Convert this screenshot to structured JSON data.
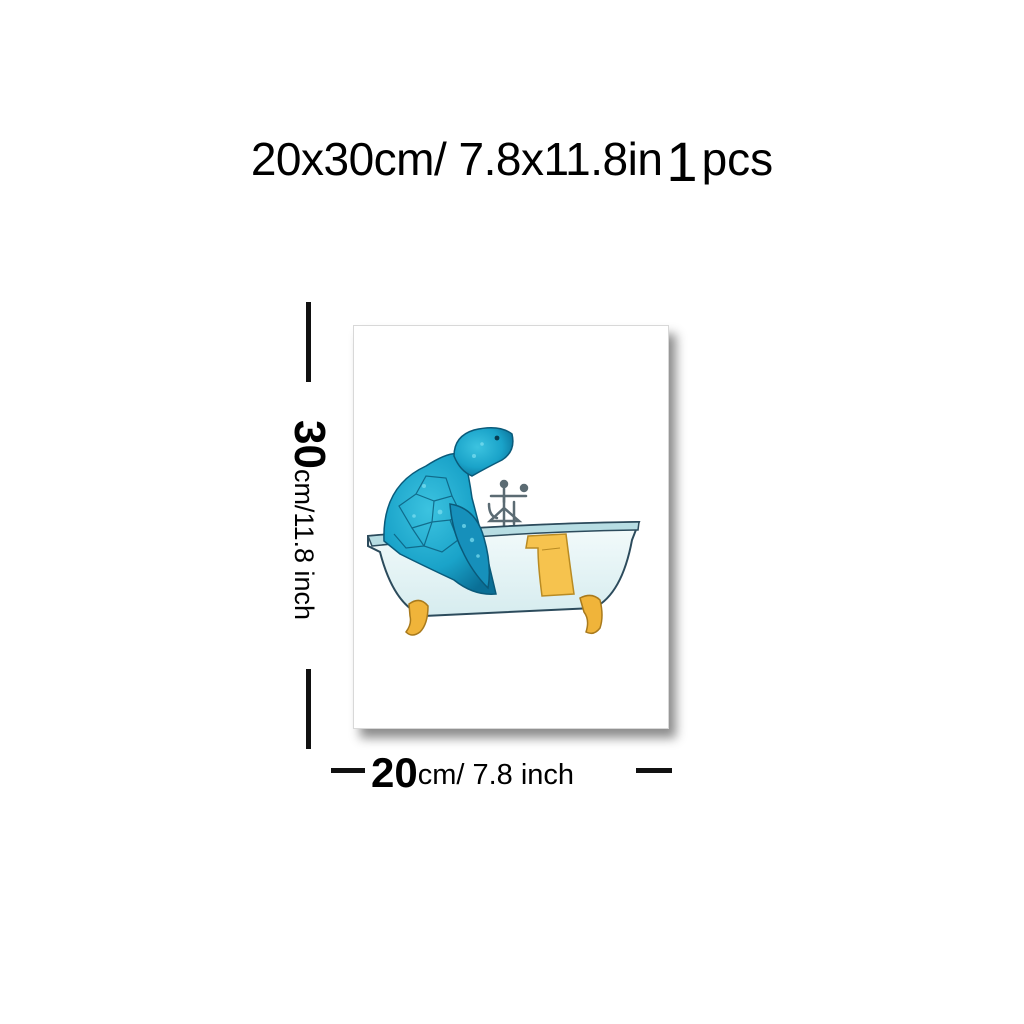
{
  "title": {
    "dimensions": "20x30cm/ 7.8x11.8in",
    "quantity": "1",
    "unit": "pcs"
  },
  "height_label": {
    "number": "30",
    "rest": "cm/11.8 inch"
  },
  "width_label": {
    "number": "20",
    "rest": "cm/ 7.8 inch"
  },
  "colors": {
    "turtle": "#1aa3c9",
    "turtle_dark": "#0a6f96",
    "tub": "#e9f4f5",
    "tub_rim": "#b7dde3",
    "tub_feet": "#f0b43a",
    "towel": "#f6c34e",
    "outline": "#2c4b5c"
  }
}
